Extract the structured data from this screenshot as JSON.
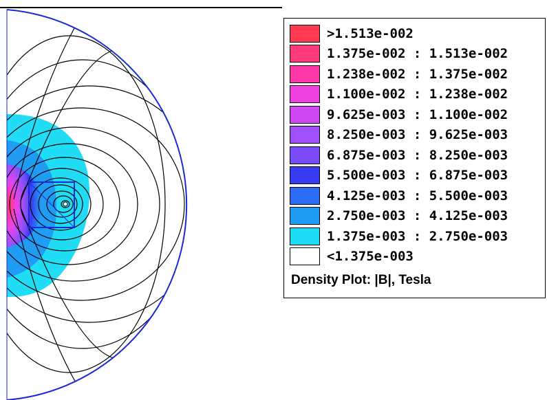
{
  "chart_data": {
    "type": "heatmap",
    "title": "Density Plot: |B|, Tesla",
    "legend_position": "top-right",
    "legend": [
      {
        "label": ">1.513e-002",
        "color": "#ff3a50"
      },
      {
        "label": "1.375e-002 : 1.513e-002",
        "color": "#ff3a7a"
      },
      {
        "label": "1.238e-002 : 1.375e-002",
        "color": "#ff3aa8"
      },
      {
        "label": "1.100e-002 : 1.238e-002",
        "color": "#f040e0"
      },
      {
        "label": "9.625e-003 : 1.100e-002",
        "color": "#d048f4"
      },
      {
        "label": "8.250e-003 : 9.625e-003",
        "color": "#a050f8"
      },
      {
        "label": "6.875e-003 : 8.250e-003",
        "color": "#7a4cf8"
      },
      {
        "label": "5.500e-003 : 6.875e-003",
        "color": "#3a3cf4"
      },
      {
        "label": "4.125e-003 : 5.500e-003",
        "color": "#2c6cf4"
      },
      {
        "label": "2.750e-003 : 4.125e-003",
        "color": "#209cf4"
      },
      {
        "label": "1.375e-003 : 2.750e-003",
        "color": "#20dcf4"
      },
      {
        "label": "<1.375e-003",
        "color": "#ffffff"
      }
    ]
  }
}
